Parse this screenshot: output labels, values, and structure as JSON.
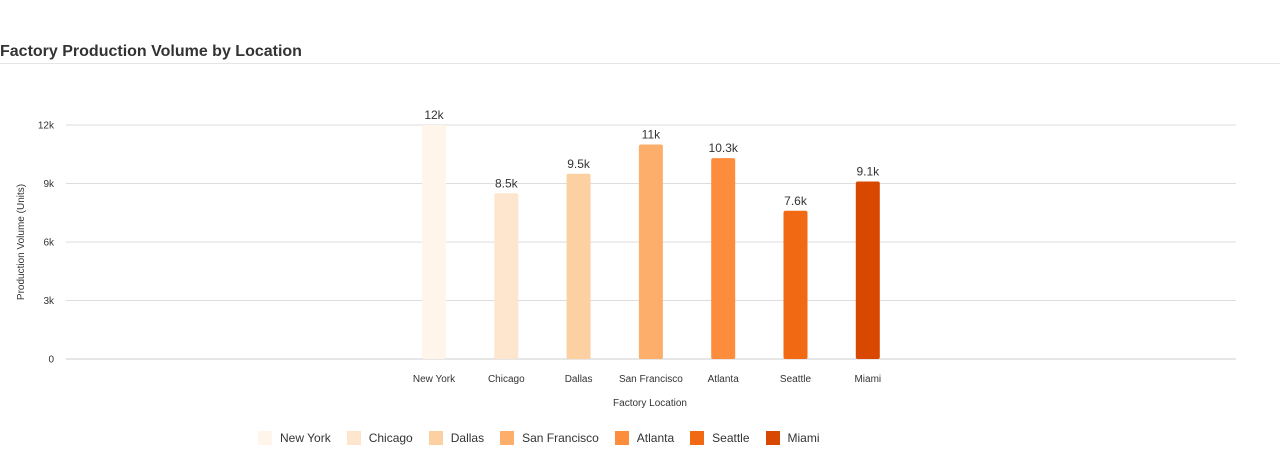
{
  "title": "Factory Production Volume by Location",
  "chart_data": {
    "type": "bar",
    "categories": [
      "New York",
      "Chicago",
      "Dallas",
      "San Francisco",
      "Atlanta",
      "Seattle",
      "Miami"
    ],
    "values": [
      12000,
      8500,
      9500,
      11000,
      10300,
      7600,
      9100
    ],
    "value_labels": [
      "12k",
      "8.5k",
      "9.5k",
      "11k",
      "10.3k",
      "7.6k",
      "9.1k"
    ],
    "colors": [
      "#fff5eb",
      "#fee6ce",
      "#fdd0a2",
      "#fdae6b",
      "#fd8d3c",
      "#f16913",
      "#d94801"
    ],
    "xlabel": "Factory Location",
    "ylabel": "Production Volume (Units)",
    "ylim": [
      0,
      12000
    ],
    "yticks": [
      0,
      3000,
      6000,
      9000,
      12000
    ],
    "ytick_labels": [
      "0",
      "3k",
      "6k",
      "9k",
      "12k"
    ],
    "grid": true,
    "legend_position": "bottom"
  }
}
